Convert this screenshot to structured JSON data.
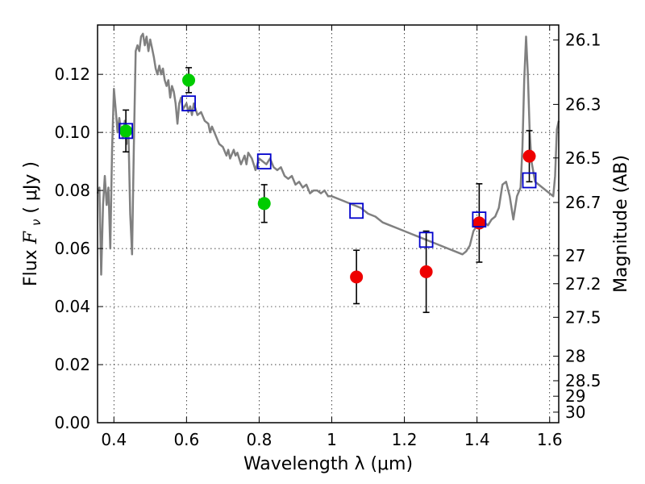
{
  "chart_data": {
    "type": "scatter",
    "xlabel": "Wavelength  λ (μm)",
    "ylabel": "Flux  F_ν  ( μJy )",
    "ylabel_parts": {
      "prefix": "Flux ",
      "symbol": "F",
      "subscript": "ν",
      "suffix": " ( μJy )"
    },
    "y2label": "Magnitude (AB)",
    "xlim": [
      0.355,
      1.625
    ],
    "ylim": [
      0.0,
      0.137
    ],
    "grid": true,
    "x_ticks": [
      0.4,
      0.6,
      0.8,
      1.0,
      1.2,
      1.4,
      1.6
    ],
    "x_tick_labels": [
      "0.4",
      "0.6",
      "0.8",
      "1",
      "1.2",
      "1.4",
      "1.6"
    ],
    "y_ticks": [
      0.0,
      0.02,
      0.04,
      0.06,
      0.08,
      0.1,
      0.12
    ],
    "y_tick_labels": [
      "0.00",
      "0.02",
      "0.04",
      "0.06",
      "0.08",
      "0.10",
      "0.12"
    ],
    "y2_ticks": [
      26.1,
      26.3,
      26.5,
      26.7,
      27,
      27.2,
      27.5,
      28,
      28.5,
      29,
      30
    ],
    "y2_tick_labels": [
      "26.1",
      "26.3",
      "26.5",
      "26.7",
      "27",
      "27.2",
      "27.5",
      "28",
      "28.5",
      "29",
      "30"
    ],
    "colors": {
      "model": "#808080",
      "green": "#00cc00",
      "red": "#ee0000",
      "square": "#0000cc",
      "error": "#000000"
    },
    "series": [
      {
        "kind": "model_spectrum",
        "points": [
          [
            0.355,
            0.079
          ],
          [
            0.36,
            0.081
          ],
          [
            0.365,
            0.051
          ],
          [
            0.37,
            0.075
          ],
          [
            0.375,
            0.085
          ],
          [
            0.38,
            0.075
          ],
          [
            0.385,
            0.081
          ],
          [
            0.39,
            0.06
          ],
          [
            0.395,
            0.094
          ],
          [
            0.4,
            0.115
          ],
          [
            0.405,
            0.108
          ],
          [
            0.41,
            0.1
          ],
          [
            0.415,
            0.105
          ],
          [
            0.42,
            0.1
          ],
          [
            0.425,
            0.098
          ],
          [
            0.43,
            0.104
          ],
          [
            0.435,
            0.096
          ],
          [
            0.44,
            0.1
          ],
          [
            0.445,
            0.072
          ],
          [
            0.45,
            0.058
          ],
          [
            0.455,
            0.095
          ],
          [
            0.46,
            0.128
          ],
          [
            0.465,
            0.13
          ],
          [
            0.47,
            0.128
          ],
          [
            0.475,
            0.133
          ],
          [
            0.48,
            0.134
          ],
          [
            0.485,
            0.13
          ],
          [
            0.49,
            0.133
          ],
          [
            0.495,
            0.128
          ],
          [
            0.5,
            0.132
          ],
          [
            0.505,
            0.129
          ],
          [
            0.51,
            0.126
          ],
          [
            0.515,
            0.122
          ],
          [
            0.52,
            0.12
          ],
          [
            0.525,
            0.123
          ],
          [
            0.53,
            0.12
          ],
          [
            0.535,
            0.122
          ],
          [
            0.54,
            0.118
          ],
          [
            0.545,
            0.116
          ],
          [
            0.55,
            0.118
          ],
          [
            0.555,
            0.112
          ],
          [
            0.56,
            0.116
          ],
          [
            0.565,
            0.114
          ],
          [
            0.57,
            0.11
          ],
          [
            0.575,
            0.103
          ],
          [
            0.58,
            0.11
          ],
          [
            0.585,
            0.112
          ],
          [
            0.59,
            0.108
          ],
          [
            0.595,
            0.109
          ],
          [
            0.6,
            0.11
          ],
          [
            0.605,
            0.107
          ],
          [
            0.61,
            0.109
          ],
          [
            0.615,
            0.106
          ],
          [
            0.62,
            0.11
          ],
          [
            0.625,
            0.108
          ],
          [
            0.63,
            0.106
          ],
          [
            0.64,
            0.107
          ],
          [
            0.65,
            0.104
          ],
          [
            0.66,
            0.103
          ],
          [
            0.665,
            0.1
          ],
          [
            0.67,
            0.102
          ],
          [
            0.68,
            0.099
          ],
          [
            0.69,
            0.096
          ],
          [
            0.7,
            0.095
          ],
          [
            0.71,
            0.092
          ],
          [
            0.715,
            0.094
          ],
          [
            0.72,
            0.091
          ],
          [
            0.73,
            0.094
          ],
          [
            0.735,
            0.092
          ],
          [
            0.74,
            0.093
          ],
          [
            0.75,
            0.089
          ],
          [
            0.76,
            0.092
          ],
          [
            0.765,
            0.089
          ],
          [
            0.77,
            0.093
          ],
          [
            0.78,
            0.091
          ],
          [
            0.785,
            0.089
          ],
          [
            0.79,
            0.087
          ],
          [
            0.8,
            0.091
          ],
          [
            0.81,
            0.09
          ],
          [
            0.82,
            0.089
          ],
          [
            0.83,
            0.091
          ],
          [
            0.84,
            0.088
          ],
          [
            0.85,
            0.087
          ],
          [
            0.86,
            0.088
          ],
          [
            0.87,
            0.085
          ],
          [
            0.88,
            0.084
          ],
          [
            0.89,
            0.085
          ],
          [
            0.9,
            0.082
          ],
          [
            0.91,
            0.083
          ],
          [
            0.92,
            0.081
          ],
          [
            0.93,
            0.082
          ],
          [
            0.94,
            0.079
          ],
          [
            0.95,
            0.08
          ],
          [
            0.96,
            0.08
          ],
          [
            0.97,
            0.079
          ],
          [
            0.98,
            0.08
          ],
          [
            0.99,
            0.078
          ],
          [
            1.0,
            0.078
          ],
          [
            1.02,
            0.077
          ],
          [
            1.04,
            0.076
          ],
          [
            1.06,
            0.075
          ],
          [
            1.08,
            0.074
          ],
          [
            1.1,
            0.072
          ],
          [
            1.12,
            0.071
          ],
          [
            1.14,
            0.069
          ],
          [
            1.16,
            0.068
          ],
          [
            1.18,
            0.067
          ],
          [
            1.2,
            0.066
          ],
          [
            1.22,
            0.065
          ],
          [
            1.24,
            0.064
          ],
          [
            1.26,
            0.063
          ],
          [
            1.28,
            0.062
          ],
          [
            1.3,
            0.061
          ],
          [
            1.32,
            0.06
          ],
          [
            1.34,
            0.059
          ],
          [
            1.36,
            0.058
          ],
          [
            1.37,
            0.059
          ],
          [
            1.38,
            0.061
          ],
          [
            1.39,
            0.066
          ],
          [
            1.4,
            0.068
          ],
          [
            1.41,
            0.069
          ],
          [
            1.42,
            0.069
          ],
          [
            1.43,
            0.068
          ],
          [
            1.44,
            0.07
          ],
          [
            1.45,
            0.071
          ],
          [
            1.46,
            0.074
          ],
          [
            1.47,
            0.082
          ],
          [
            1.48,
            0.083
          ],
          [
            1.49,
            0.078
          ],
          [
            1.5,
            0.07
          ],
          [
            1.51,
            0.078
          ],
          [
            1.52,
            0.081
          ],
          [
            1.525,
            0.095
          ],
          [
            1.53,
            0.118
          ],
          [
            1.535,
            0.133
          ],
          [
            1.54,
            0.12
          ],
          [
            1.545,
            0.1
          ],
          [
            1.55,
            0.09
          ],
          [
            1.56,
            0.083
          ],
          [
            1.57,
            0.082
          ],
          [
            1.58,
            0.081
          ],
          [
            1.59,
            0.08
          ],
          [
            1.6,
            0.079
          ],
          [
            1.61,
            0.078
          ],
          [
            1.615,
            0.085
          ],
          [
            1.62,
            0.101
          ],
          [
            1.625,
            0.104
          ]
        ]
      },
      {
        "kind": "photometry_green",
        "points": [
          {
            "x": 0.433,
            "y": 0.1005,
            "err": 0.0072
          },
          {
            "x": 0.606,
            "y": 0.118,
            "err": 0.0043
          },
          {
            "x": 0.814,
            "y": 0.0755,
            "err": 0.0065
          }
        ]
      },
      {
        "kind": "photometry_red",
        "points": [
          {
            "x": 1.068,
            "y": 0.0502,
            "err": 0.0092
          },
          {
            "x": 1.26,
            "y": 0.052,
            "err": 0.014
          },
          {
            "x": 1.406,
            "y": 0.0688,
            "err": 0.0135
          },
          {
            "x": 1.544,
            "y": 0.0918,
            "err": 0.0088
          }
        ]
      },
      {
        "kind": "model_photometry",
        "points": [
          {
            "x": 0.433,
            "y": 0.1005
          },
          {
            "x": 0.606,
            "y": 0.11
          },
          {
            "x": 0.814,
            "y": 0.09
          },
          {
            "x": 1.068,
            "y": 0.073
          },
          {
            "x": 1.26,
            "y": 0.063
          },
          {
            "x": 1.406,
            "y": 0.07
          },
          {
            "x": 1.544,
            "y": 0.0835
          }
        ]
      }
    ]
  }
}
